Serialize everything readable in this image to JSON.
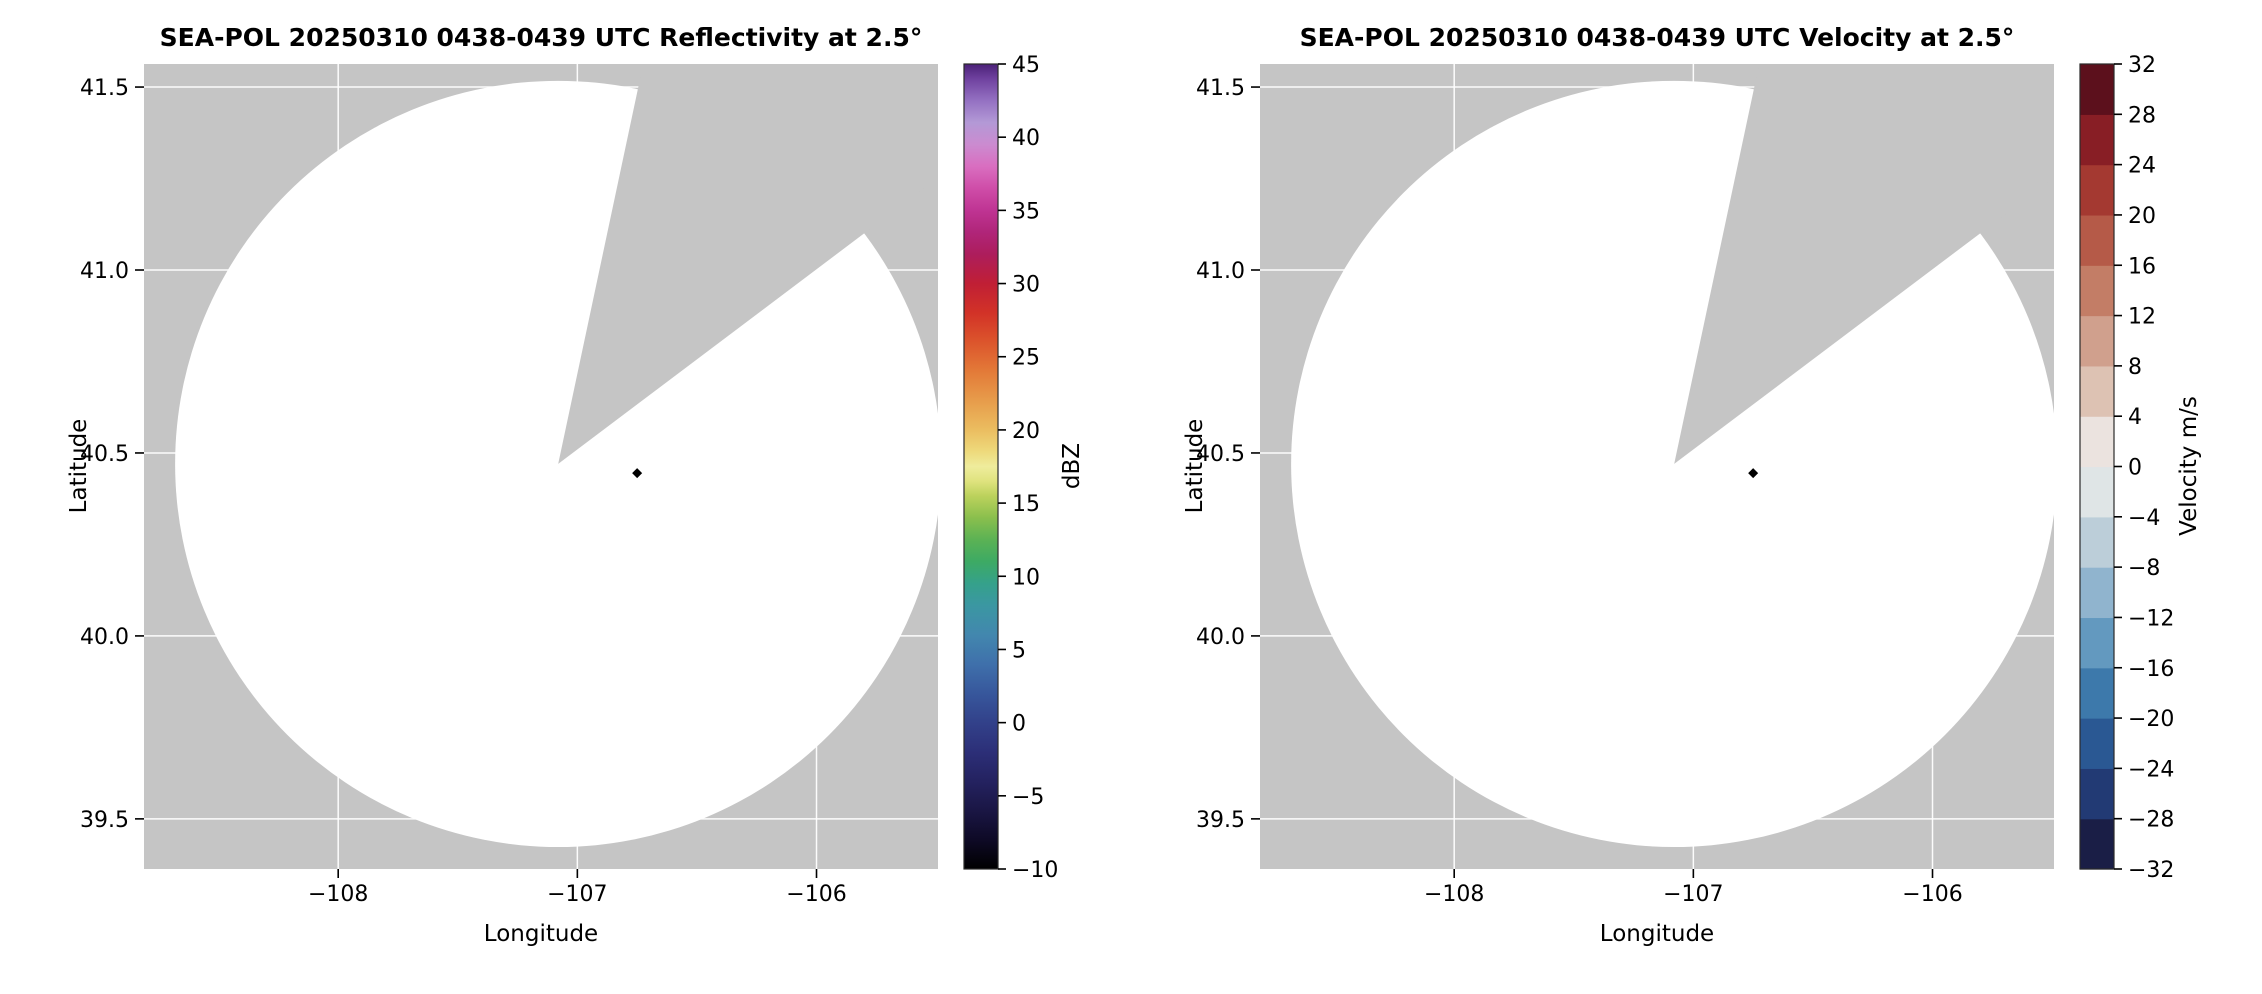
{
  "figure": {
    "background_color": "#ffffff",
    "plot_background_color": "#c5c5c5",
    "scan_fill_color": "#ffffff",
    "gridline_color": "#ffffff",
    "tick_color": "#000000",
    "text_color": "#000000"
  },
  "chart_data": [
    {
      "type": "radar_ppi",
      "panel": "reflectivity",
      "title": "SEA-POL 20250310 0438-0439 UTC Reflectivity at 2.5°",
      "xlabel": "Longitude",
      "ylabel": "Latitude",
      "xlim": [
        -108.812,
        -105.492
      ],
      "ylim": [
        39.363,
        41.563
      ],
      "xticks": [
        -108,
        -107,
        -106
      ],
      "xtick_labels": [
        "−108",
        "−107",
        "−106"
      ],
      "yticks": [
        41.5,
        41.0,
        40.5,
        40.0,
        39.5
      ],
      "ytick_labels": [
        "41.5",
        "41.0",
        "40.5",
        "40.0",
        "39.5"
      ],
      "radar": {
        "lon": -107.08,
        "lat": 40.47
      },
      "scan_radius_deg": 1.047,
      "blocked_sector_azimuth_deg": {
        "from": 12,
        "to": 53
      },
      "marker": {
        "lon": -106.75,
        "lat": 40.445,
        "shape": "diamond",
        "color": "#000000"
      },
      "echoes": "none visible (scan area blank)",
      "colorbar": {
        "label": "dBZ",
        "min": -10,
        "max": 45,
        "style": "continuous",
        "ticks": [
          45,
          40,
          35,
          30,
          25,
          20,
          15,
          10,
          5,
          0,
          -5,
          -10
        ],
        "tick_labels": [
          "45",
          "40",
          "35",
          "30",
          "25",
          "20",
          "15",
          "10",
          "5",
          "0",
          "−5",
          "−10"
        ],
        "stops": [
          {
            "value": -10,
            "color": "#000000"
          },
          {
            "value": -8,
            "color": "#0e0a26"
          },
          {
            "value": -6,
            "color": "#1a1644"
          },
          {
            "value": -4,
            "color": "#242260"
          },
          {
            "value": -2,
            "color": "#2c2f78"
          },
          {
            "value": 0,
            "color": "#32418a"
          },
          {
            "value": 2,
            "color": "#37579c"
          },
          {
            "value": 4,
            "color": "#3f70ab"
          },
          {
            "value": 6,
            "color": "#4287ae"
          },
          {
            "value": 8,
            "color": "#3b97a2"
          },
          {
            "value": 9.5,
            "color": "#35a18b"
          },
          {
            "value": 11,
            "color": "#3daa64"
          },
          {
            "value": 12.5,
            "color": "#5bb254"
          },
          {
            "value": 14,
            "color": "#8abf4d"
          },
          {
            "value": 15.5,
            "color": "#bcd25c"
          },
          {
            "value": 16.5,
            "color": "#dfe37e"
          },
          {
            "value": 17.5,
            "color": "#efec9c"
          },
          {
            "value": 18.5,
            "color": "#eeda7c"
          },
          {
            "value": 20,
            "color": "#ebbd60"
          },
          {
            "value": 22,
            "color": "#e79c4b"
          },
          {
            "value": 24,
            "color": "#e37a38"
          },
          {
            "value": 26,
            "color": "#dc552c"
          },
          {
            "value": 28,
            "color": "#d23227"
          },
          {
            "value": 30,
            "color": "#c01f35"
          },
          {
            "value": 32,
            "color": "#ad1d5c"
          },
          {
            "value": 33.5,
            "color": "#b02579"
          },
          {
            "value": 35,
            "color": "#bf3493"
          },
          {
            "value": 36.5,
            "color": "#cf4da8"
          },
          {
            "value": 38,
            "color": "#d96ec0"
          },
          {
            "value": 39.5,
            "color": "#cb8bd0"
          },
          {
            "value": 41,
            "color": "#b399d6"
          },
          {
            "value": 42.5,
            "color": "#9471c2"
          },
          {
            "value": 44,
            "color": "#6f419f"
          },
          {
            "value": 45,
            "color": "#4b2178"
          }
        ]
      }
    },
    {
      "type": "radar_ppi",
      "panel": "velocity",
      "title": "SEA-POL 20250310 0438-0439 UTC Velocity at 2.5°",
      "xlabel": "Longitude",
      "ylabel": "Latitude",
      "xlim": [
        -108.812,
        -105.492
      ],
      "ylim": [
        39.363,
        41.563
      ],
      "xticks": [
        -108,
        -107,
        -106
      ],
      "xtick_labels": [
        "−108",
        "−107",
        "−106"
      ],
      "yticks": [
        41.5,
        41.0,
        40.5,
        40.0,
        39.5
      ],
      "ytick_labels": [
        "41.5",
        "41.0",
        "40.5",
        "40.0",
        "39.5"
      ],
      "radar": {
        "lon": -107.08,
        "lat": 40.47
      },
      "scan_radius_deg": 1.047,
      "blocked_sector_azimuth_deg": {
        "from": 12,
        "to": 53
      },
      "marker": {
        "lon": -106.75,
        "lat": 40.445,
        "shape": "diamond",
        "color": "#000000"
      },
      "echoes": "none visible (scan area blank)",
      "colorbar": {
        "label": "Velocity m/s",
        "min": -32,
        "max": 32,
        "style": "discrete",
        "ticks": [
          32,
          28,
          24,
          20,
          16,
          12,
          8,
          4,
          0,
          -4,
          -8,
          -12,
          -16,
          -20,
          -24,
          -28,
          -32
        ],
        "tick_labels": [
          "32",
          "28",
          "24",
          "20",
          "16",
          "12",
          "8",
          "4",
          "0",
          "−4",
          "−8",
          "−12",
          "−16",
          "−20",
          "−24",
          "−28",
          "−32"
        ],
        "cells": [
          {
            "from": -32,
            "to": -28,
            "color": "#1a1e46"
          },
          {
            "from": -28,
            "to": -24,
            "color": "#223a74"
          },
          {
            "from": -24,
            "to": -20,
            "color": "#2a5893"
          },
          {
            "from": -20,
            "to": -16,
            "color": "#3d79ab"
          },
          {
            "from": -16,
            "to": -12,
            "color": "#6399bf"
          },
          {
            "from": -12,
            "to": -8,
            "color": "#90b4ce"
          },
          {
            "from": -8,
            "to": -4,
            "color": "#bcced9"
          },
          {
            "from": -4,
            "to": 0,
            "color": "#dfe5e6"
          },
          {
            "from": 0,
            "to": 4,
            "color": "#ebe3df"
          },
          {
            "from": 4,
            "to": 8,
            "color": "#ddc2b3"
          },
          {
            "from": 8,
            "to": 12,
            "color": "#d0a08d"
          },
          {
            "from": 12,
            "to": 16,
            "color": "#c37d66"
          },
          {
            "from": 16,
            "to": 20,
            "color": "#b55a48"
          },
          {
            "from": 20,
            "to": 24,
            "color": "#a43931"
          },
          {
            "from": 24,
            "to": 28,
            "color": "#881e25"
          },
          {
            "from": 28,
            "to": 32,
            "color": "#5c101c"
          }
        ]
      }
    }
  ]
}
